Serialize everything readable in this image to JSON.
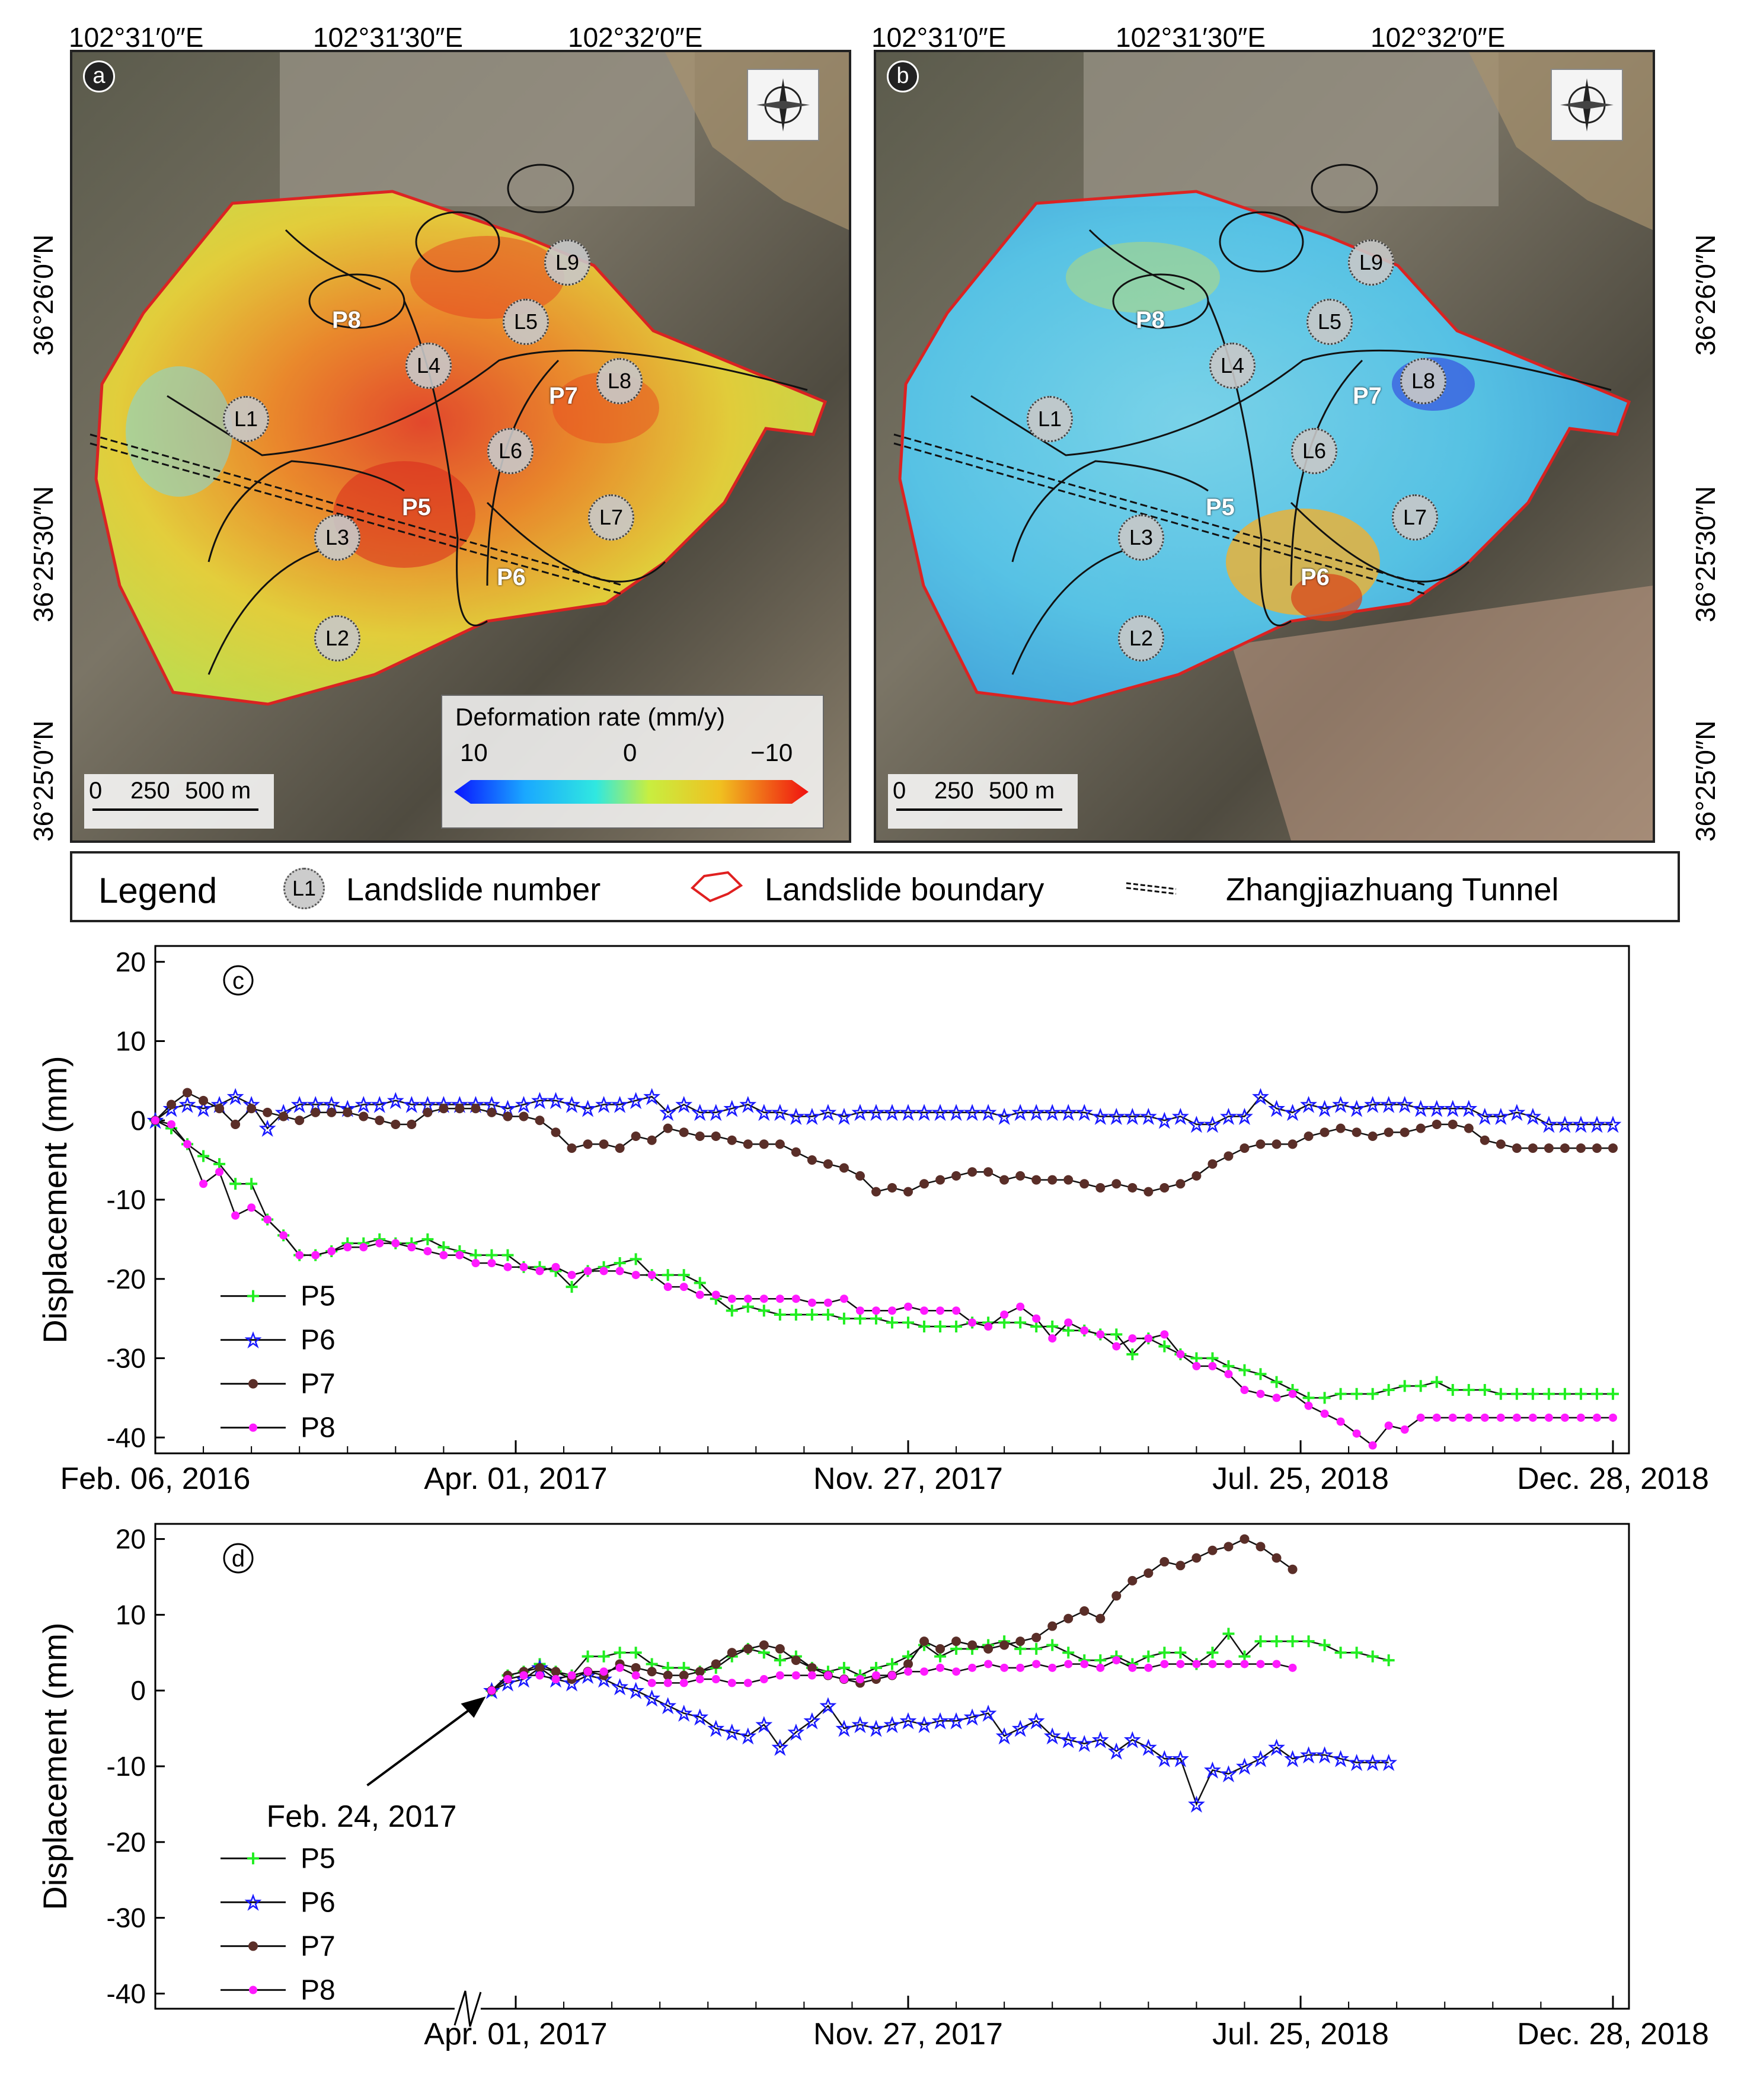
{
  "maps": {
    "panel_a": {
      "letter": "a",
      "top_coords": [
        "102°31′0″E",
        "102°31′30″E",
        "102°32′0″E"
      ],
      "left_coords": [
        "36°26′0″N",
        "36°25′30″N",
        "36°25′0″N"
      ],
      "landslides": [
        "L1",
        "L2",
        "L3",
        "L4",
        "L5",
        "L6",
        "L7",
        "L8",
        "L9"
      ],
      "points": [
        "P5",
        "P6",
        "P7",
        "P8"
      ],
      "colorbar": {
        "title": "Deformation rate  (mm/y)",
        "ticks": [
          "10",
          "0",
          "−10"
        ],
        "range": [
          10,
          -10
        ]
      },
      "scalebar": {
        "label_0": "0",
        "label_250": "250",
        "label_500": "500 m"
      }
    },
    "panel_b": {
      "letter": "b",
      "top_coords": [
        "102°31′0″E",
        "102°31′30″E",
        "102°32′0″E"
      ],
      "right_coords": [
        "36°26′0″N",
        "36°25′30″N",
        "36°25′0″N"
      ],
      "landslides": [
        "L1",
        "L2",
        "L3",
        "L4",
        "L5",
        "L6",
        "L7",
        "L8",
        "L9"
      ],
      "points": [
        "P5",
        "P6",
        "P7",
        "P8"
      ],
      "scalebar": {
        "label_0": "0",
        "label_250": "250",
        "label_500": "500 m"
      }
    },
    "compass": {
      "n": "N",
      "s": "S",
      "e": "E",
      "w": "W"
    }
  },
  "legend": {
    "title": "Legend",
    "landslide_number_symbol": "L1",
    "landslide_number_label": "Landslide number",
    "boundary_label": "Landslide boundary",
    "tunnel_label": "Zhangjiazhuang Tunnel"
  },
  "colors": {
    "P5": "#22ee22",
    "P6": "#1a1aff",
    "P7": "#5a2e28",
    "P8": "#ff1aff",
    "boundary": "#e02020"
  },
  "chart_data": [
    {
      "panel": "c",
      "type": "line",
      "ylabel": "Displacement (mm)",
      "xlabel": "",
      "ylim": [
        -42,
        22
      ],
      "yticks": [
        20,
        10,
        0,
        -10,
        -20,
        -30,
        -40
      ],
      "xlim": [
        0,
        92
      ],
      "xticks": [
        {
          "x": 0,
          "label": "Feb. 06, 2016"
        },
        {
          "x": 22.5,
          "label": "Apr. 01, 2017"
        },
        {
          "x": 47,
          "label": "Nov. 27, 2017"
        },
        {
          "x": 71.5,
          "label": "Jul. 25, 2018"
        },
        {
          "x": 91,
          "label": "Dec. 28, 2018"
        }
      ],
      "minor_xticks": [
        3,
        6,
        9,
        12,
        15,
        18,
        25.5,
        28.5,
        31.5,
        34.5,
        37.5,
        40.5,
        43.5,
        50,
        53,
        56,
        59,
        62,
        65,
        68,
        74.5,
        77.5,
        80.5,
        83.5,
        86.5
      ],
      "legend": [
        "P5",
        "P6",
        "P7",
        "P8"
      ],
      "series": [
        {
          "name": "P5",
          "marker": "plus",
          "values": [
            0,
            -1,
            -3,
            -4.5,
            -5.5,
            -8,
            -8,
            -12.5,
            -14.5,
            -17,
            -17,
            -16.5,
            -15.5,
            -15.5,
            -15,
            -15.5,
            -15.5,
            -15,
            -16,
            -16.5,
            -17,
            -17,
            -17,
            -18.5,
            -18.5,
            -19,
            -21,
            -19,
            -18.5,
            -18,
            -17.5,
            -19.5,
            -19.5,
            -19.5,
            -20.5,
            -22.5,
            -24,
            -23.5,
            -24,
            -24.5,
            -24.5,
            -24.5,
            -24.5,
            -25,
            -25,
            -25,
            -25.5,
            -25.5,
            -26,
            -26,
            -26,
            -25.5,
            -25.5,
            -25.5,
            -25.5,
            -26,
            -26,
            -26.5,
            -26.5,
            -27,
            -27,
            -29.5,
            -27.5,
            -28.5,
            -29.5,
            -30,
            -30,
            -31,
            -31.5,
            -32,
            -33,
            -34,
            -35,
            -35,
            -34.5,
            -34.5,
            -34.5,
            -34,
            -33.5,
            -33.5,
            -33,
            -34,
            -34,
            -34,
            -34.5,
            -34.5,
            -34.5,
            -34.5,
            -34.5,
            -34.5,
            -34.5,
            -34.5
          ]
        },
        {
          "name": "P6",
          "marker": "star",
          "values": [
            0,
            1.5,
            2,
            1.5,
            2,
            3,
            2,
            -1,
            1,
            2,
            2,
            2,
            1.5,
            2,
            2,
            2.5,
            2,
            2,
            2,
            2,
            2,
            2,
            1.5,
            2,
            2.5,
            2.5,
            2,
            1.5,
            2,
            2,
            2.5,
            3,
            1,
            2,
            1,
            1,
            1.5,
            2,
            1,
            1,
            0.5,
            0.5,
            1,
            0.5,
            1,
            1,
            1,
            1,
            1,
            1,
            1,
            1,
            1,
            0.5,
            1,
            1,
            1,
            1,
            1,
            0.5,
            0.5,
            0.5,
            0.5,
            0,
            0.5,
            -0.5,
            -0.5,
            0.5,
            0.5,
            3,
            1.5,
            1,
            2,
            1.5,
            2,
            1.5,
            2,
            2,
            2,
            1.5,
            1.5,
            1.5,
            1.5,
            0.5,
            0.5,
            1,
            0.5,
            -0.5,
            -0.5,
            -0.5,
            -0.5,
            -0.5
          ]
        },
        {
          "name": "P7",
          "marker": "octagon",
          "values": [
            0,
            2,
            3.5,
            2.5,
            1.5,
            -0.5,
            1.5,
            1,
            0.5,
            0,
            1,
            1,
            1,
            0.5,
            0,
            -0.5,
            -0.5,
            1,
            1.5,
            1.5,
            1.5,
            1,
            0.5,
            0.5,
            0,
            -1.5,
            -3.5,
            -3,
            -3,
            -3.5,
            -2,
            -2.5,
            -1,
            -1.5,
            -2,
            -2,
            -2.5,
            -3,
            -3,
            -3,
            -4,
            -5,
            -5.5,
            -6,
            -7,
            -9,
            -8.5,
            -9,
            -8,
            -7.5,
            -7,
            -6.5,
            -6.5,
            -7.5,
            -7,
            -7.5,
            -7.5,
            -7.5,
            -8,
            -8.5,
            -8,
            -8.5,
            -9,
            -8.5,
            -8,
            -7,
            -5.5,
            -4.5,
            -3.5,
            -3,
            -3,
            -3,
            -2,
            -1.5,
            -1,
            -1.5,
            -2,
            -1.5,
            -1.5,
            -1,
            -0.5,
            -0.5,
            -1,
            -2.5,
            -3,
            -3.5,
            -3.5,
            -3.5,
            -3.5,
            -3.5,
            -3.5,
            -3.5
          ]
        },
        {
          "name": "P8",
          "marker": "circle",
          "values": [
            0,
            -0.5,
            -3,
            -8,
            -6.5,
            -12,
            -11,
            -12.5,
            -14.5,
            -17,
            -17,
            -16.5,
            -16,
            -16,
            -15.5,
            -15.5,
            -16,
            -16.5,
            -17,
            -17,
            -18,
            -18,
            -18.5,
            -18.5,
            -19,
            -18.5,
            -19.5,
            -19,
            -19,
            -19,
            -19.5,
            -19.5,
            -21,
            -21,
            -22,
            -22,
            -22.5,
            -22.5,
            -22.5,
            -22.5,
            -22.5,
            -23,
            -23,
            -22.5,
            -24,
            -24,
            -24,
            -23.5,
            -24,
            -24,
            -24,
            -25.5,
            -26,
            -24.5,
            -23.5,
            -25,
            -27.5,
            -25.5,
            -26.5,
            -27,
            -28.5,
            -27.5,
            -27.5,
            -27,
            -29.5,
            -31,
            -31,
            -32,
            -34,
            -34.5,
            -35,
            -34.5,
            -36,
            -37,
            -38,
            -39.5,
            -41,
            -38.5,
            -39,
            -37.5,
            -37.5,
            -37.5,
            -37.5,
            -37.5,
            -37.5,
            -37.5,
            -37.5,
            -37.5,
            -37.5,
            -37.5,
            -37.5,
            -37.5
          ]
        }
      ]
    },
    {
      "panel": "d",
      "type": "line",
      "ylabel": "Displacement (mm)",
      "xlabel": "",
      "ylim": [
        -42,
        22
      ],
      "yticks": [
        20,
        10,
        0,
        -10,
        -20,
        -30,
        -40
      ],
      "xlim": [
        0,
        92
      ],
      "xticks": [
        {
          "x": 22.5,
          "label": "Apr. 01, 2017"
        },
        {
          "x": 47,
          "label": "Nov. 27, 2017"
        },
        {
          "x": 71.5,
          "label": "Jul. 25, 2018"
        },
        {
          "x": 91,
          "label": "Dec. 28, 2018"
        }
      ],
      "minor_xticks": [
        25.5,
        28.5,
        31.5,
        34.5,
        37.5,
        40.5,
        43.5,
        50,
        53,
        56,
        59,
        62,
        65,
        68,
        74.5,
        77.5,
        80.5,
        83.5,
        86.5
      ],
      "axis_break_x": 19.5,
      "annotation": {
        "text": "Feb. 24, 2017",
        "x": 21,
        "y": 0
      },
      "start_x": 21,
      "legend": [
        "P5",
        "P6",
        "P7",
        "P8"
      ],
      "series": [
        {
          "name": "P5",
          "marker": "plus",
          "values": [
            0,
            2,
            2.5,
            3.5,
            2.5,
            2,
            4.5,
            4.5,
            5,
            5,
            3.5,
            3,
            3,
            2.5,
            3,
            4.5,
            5.5,
            5,
            4,
            4.5,
            3,
            2.5,
            3,
            2,
            3,
            3.5,
            4.5,
            6,
            4.5,
            5.5,
            5.5,
            6,
            6.5,
            5.5,
            5.5,
            6,
            5,
            4,
            4,
            4.5,
            3.5,
            4.5,
            5,
            5,
            3.5,
            5,
            7.5,
            4.5,
            6.5,
            6.5,
            6.5,
            6.5,
            6,
            5,
            5,
            4.5,
            4
          ]
        },
        {
          "name": "P6",
          "marker": "star",
          "values": [
            0,
            1,
            1.5,
            3,
            1.5,
            1,
            2,
            1.5,
            0.5,
            0,
            -1,
            -2,
            -3,
            -3.5,
            -5,
            -5.5,
            -6,
            -4.5,
            -7.5,
            -5.5,
            -4,
            -2,
            -5,
            -4.5,
            -5,
            -4.5,
            -4,
            -4.5,
            -4,
            -4,
            -3.5,
            -3,
            -6,
            -5,
            -4,
            -6,
            -6.5,
            -7,
            -6.5,
            -8,
            -6.5,
            -7.5,
            -9,
            -9,
            -15,
            -10.5,
            -11,
            -10,
            -9,
            -7.5,
            -9,
            -8.5,
            -8.5,
            -9,
            -9.5,
            -9.5,
            -9.5
          ]
        },
        {
          "name": "P7",
          "marker": "octagon",
          "values": [
            0,
            2,
            2.5,
            3,
            2.5,
            1.5,
            2.5,
            2,
            3.5,
            3,
            2.5,
            2,
            2,
            2.5,
            3.5,
            5,
            5.5,
            6,
            5.5,
            4,
            3,
            2,
            1.5,
            1,
            1.5,
            2,
            3.5,
            6.5,
            5.5,
            6.5,
            6,
            5.5,
            6,
            6.5,
            7,
            8.5,
            9.5,
            10.5,
            9.5,
            12.5,
            14.5,
            15.5,
            17,
            16.5,
            17.5,
            18.5,
            19,
            20,
            19,
            17.5,
            16
          ]
        },
        {
          "name": "P8",
          "marker": "circle",
          "values": [
            0,
            1.5,
            2,
            2,
            1.5,
            2,
            2.5,
            2.5,
            3,
            2,
            1,
            1,
            1,
            1.5,
            1.5,
            1,
            1,
            1.5,
            2,
            2,
            2,
            2,
            1.5,
            1.5,
            2,
            2,
            2.5,
            2.5,
            3,
            2.5,
            3,
            3.5,
            3,
            3,
            3.5,
            3,
            3.5,
            3.5,
            3,
            4,
            3,
            3,
            3.5,
            3.5,
            3.5,
            3.5,
            3.5,
            3.5,
            3.5,
            3.5,
            3
          ]
        }
      ]
    }
  ]
}
